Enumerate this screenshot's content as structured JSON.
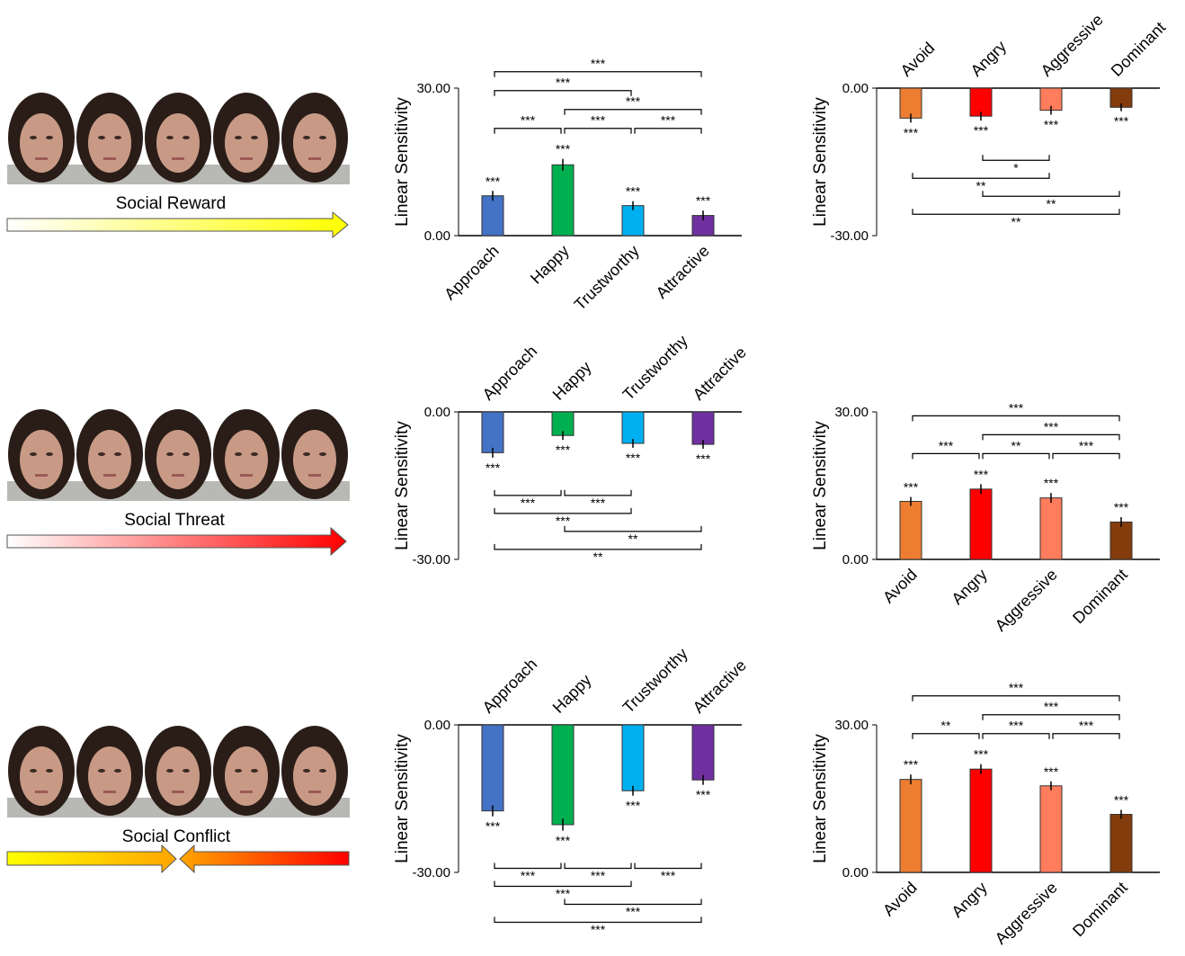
{
  "rows": [
    {
      "label": "Social Reward"
    },
    {
      "label": "Social Threat"
    },
    {
      "label": "Social Conflict"
    }
  ],
  "chart_data": [
    {
      "type": "bar",
      "ylabel": "Linear Sensitivity",
      "categories": [
        "Approach",
        "Happy",
        "Trustworthy",
        "Attractive"
      ],
      "values": [
        8.1,
        14.4,
        6.1,
        4.1
      ],
      "errors": [
        1.0,
        1.2,
        0.9,
        1.0
      ],
      "colors": [
        "#4472c4",
        "#00b050",
        "#00b0f0",
        "#7030a0"
      ],
      "sig_labels": [
        "***",
        "***",
        "***",
        "***"
      ],
      "ylim": [
        0,
        30
      ],
      "yticks": [
        {
          "value": 0,
          "label": "0.00"
        },
        {
          "value": 30,
          "label": "30.00"
        }
      ],
      "comparisons": [
        {
          "pair": [
            0,
            1
          ],
          "label": "***"
        },
        {
          "pair": [
            1,
            2
          ],
          "label": "***"
        },
        {
          "pair": [
            2,
            3
          ],
          "label": "***"
        },
        {
          "pair": [
            1,
            3
          ],
          "label": "***"
        },
        {
          "pair": [
            0,
            2
          ],
          "label": "***"
        },
        {
          "pair": [
            0,
            3
          ],
          "label": "***"
        }
      ]
    },
    {
      "type": "bar",
      "ylabel": "Linear Sensitivity",
      "categories": [
        "Avoid",
        "Angry",
        "Aggressive",
        "Dominant"
      ],
      "values": [
        -6.1,
        -5.7,
        -4.5,
        -3.9
      ],
      "errors": [
        0.9,
        0.9,
        0.9,
        0.8
      ],
      "colors": [
        "#ed7d31",
        "#ff0000",
        "#ff7c5c",
        "#843c0c"
      ],
      "sig_labels": [
        "***",
        "***",
        "***",
        "***"
      ],
      "ylim": [
        -30,
        0
      ],
      "yticks": [
        {
          "value": 0,
          "label": "0.00"
        },
        {
          "value": -30,
          "label": "-30.00"
        }
      ],
      "comparisons": [
        {
          "pair": [
            1,
            2
          ],
          "label": "*"
        },
        {
          "pair": [
            0,
            2
          ],
          "label": "**"
        },
        {
          "pair": [
            1,
            3
          ],
          "label": "**"
        },
        {
          "pair": [
            0,
            3
          ],
          "label": "**"
        }
      ]
    },
    {
      "type": "bar",
      "ylabel": "Linear Sensitivity",
      "categories": [
        "Approach",
        "Happy",
        "Trustworthy",
        "Attractive"
      ],
      "values": [
        -8.3,
        -4.8,
        -6.4,
        -6.6
      ],
      "errors": [
        1.0,
        0.9,
        0.9,
        0.9
      ],
      "colors": [
        "#4472c4",
        "#00b050",
        "#00b0f0",
        "#7030a0"
      ],
      "sig_labels": [
        "***",
        "***",
        "***",
        "***"
      ],
      "ylim": [
        -30,
        0
      ],
      "yticks": [
        {
          "value": 0,
          "label": "0.00"
        },
        {
          "value": -30,
          "label": "-30.00"
        }
      ],
      "comparisons": [
        {
          "pair": [
            0,
            1
          ],
          "label": "***"
        },
        {
          "pair": [
            1,
            2
          ],
          "label": "***"
        },
        {
          "pair": [
            0,
            2
          ],
          "label": "***"
        },
        {
          "pair": [
            1,
            3
          ],
          "label": "**"
        },
        {
          "pair": [
            0,
            3
          ],
          "label": "**"
        }
      ]
    },
    {
      "type": "bar",
      "ylabel": "Linear Sensitivity",
      "categories": [
        "Avoid",
        "Angry",
        "Aggressive",
        "Dominant"
      ],
      "values": [
        11.8,
        14.3,
        12.5,
        7.6
      ],
      "errors": [
        0.9,
        1.0,
        1.0,
        1.0
      ],
      "colors": [
        "#ed7d31",
        "#ff0000",
        "#ff7c5c",
        "#843c0c"
      ],
      "sig_labels": [
        "***",
        "***",
        "***",
        "***"
      ],
      "ylim": [
        0,
        30
      ],
      "yticks": [
        {
          "value": 0,
          "label": "0.00"
        },
        {
          "value": 30,
          "label": "30.00"
        }
      ],
      "comparisons": [
        {
          "pair": [
            0,
            1
          ],
          "label": "***"
        },
        {
          "pair": [
            1,
            2
          ],
          "label": "**"
        },
        {
          "pair": [
            2,
            3
          ],
          "label": "***"
        },
        {
          "pair": [
            1,
            3
          ],
          "label": "***"
        },
        {
          "pair": [
            0,
            3
          ],
          "label": "***"
        }
      ]
    },
    {
      "type": "bar",
      "ylabel": "Linear Sensitivity",
      "categories": [
        "Approach",
        "Happy",
        "Trustworthy",
        "Attractive"
      ],
      "values": [
        -17.5,
        -20.3,
        -13.4,
        -11.2
      ],
      "errors": [
        1.1,
        1.2,
        1.0,
        1.0
      ],
      "colors": [
        "#4472c4",
        "#00b050",
        "#00b0f0",
        "#7030a0"
      ],
      "sig_labels": [
        "***",
        "***",
        "***",
        "***"
      ],
      "ylim": [
        -30,
        0
      ],
      "yticks": [
        {
          "value": 0,
          "label": "0.00"
        },
        {
          "value": -30,
          "label": "-30.00"
        }
      ],
      "comparisons": [
        {
          "pair": [
            0,
            1
          ],
          "label": "***"
        },
        {
          "pair": [
            1,
            2
          ],
          "label": "***"
        },
        {
          "pair": [
            2,
            3
          ],
          "label": "***"
        },
        {
          "pair": [
            0,
            2
          ],
          "label": "***"
        },
        {
          "pair": [
            1,
            3
          ],
          "label": "***"
        },
        {
          "pair": [
            0,
            3
          ],
          "label": "***"
        }
      ]
    },
    {
      "type": "bar",
      "ylabel": "Linear Sensitivity",
      "categories": [
        "Avoid",
        "Angry",
        "Aggressive",
        "Dominant"
      ],
      "values": [
        18.9,
        21.0,
        17.6,
        11.8
      ],
      "errors": [
        1.0,
        1.0,
        0.9,
        0.9
      ],
      "colors": [
        "#ed7d31",
        "#ff0000",
        "#ff7c5c",
        "#843c0c"
      ],
      "sig_labels": [
        "***",
        "***",
        "***",
        "***"
      ],
      "ylim": [
        0,
        30
      ],
      "yticks": [
        {
          "value": 0,
          "label": "0.00"
        },
        {
          "value": 30,
          "label": "30.00"
        }
      ],
      "comparisons": [
        {
          "pair": [
            0,
            1
          ],
          "label": "**"
        },
        {
          "pair": [
            1,
            2
          ],
          "label": "***"
        },
        {
          "pair": [
            2,
            3
          ],
          "label": "***"
        },
        {
          "pair": [
            1,
            3
          ],
          "label": "***"
        },
        {
          "pair": [
            0,
            3
          ],
          "label": "***"
        }
      ]
    }
  ]
}
